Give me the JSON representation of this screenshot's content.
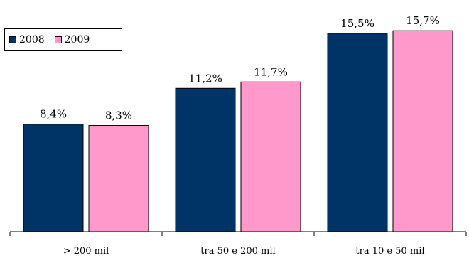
{
  "chart_data": {
    "type": "bar",
    "categories": [
      "> 200 mil",
      "tra 50 e 200 mil",
      "tra 10 e 50 mil"
    ],
    "series": [
      {
        "name": "2008",
        "color": "#003366",
        "values": [
          8.4,
          11.2,
          15.5
        ],
        "labels": [
          "8,4%",
          "11,2%",
          "15,5%"
        ]
      },
      {
        "name": "2009",
        "color": "#ff99cc",
        "values": [
          8.3,
          11.7,
          15.7
        ],
        "labels": [
          "8,3%",
          "11,7%",
          "15,7%"
        ]
      }
    ],
    "ylim": [
      0,
      18.1
    ],
    "grid": false,
    "legend": "top-left"
  }
}
